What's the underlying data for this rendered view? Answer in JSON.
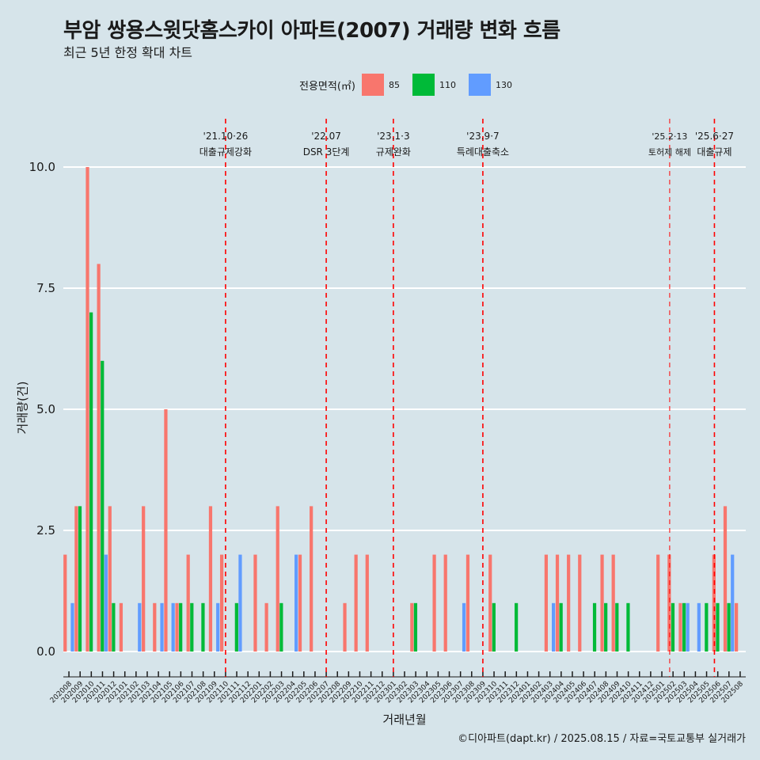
{
  "title": "부암 쌍용스윗닷홈스카이 아파트(2007) 거래량 변화 흐름",
  "subtitle": "최근 5년 한정 확대 차트",
  "caption": "©디아파트(dapt.kr) / 2025.08.15 / 자료=국토교통부 실거래가",
  "legend": {
    "title": "전용면적(㎡)",
    "items": [
      {
        "label": "85",
        "color": "#f8766d"
      },
      {
        "label": "110",
        "color": "#00ba38"
      },
      {
        "label": "130",
        "color": "#619cff"
      }
    ]
  },
  "chart_data": {
    "type": "bar",
    "xlabel": "거래년월",
    "ylabel": "거래량(건)",
    "ylim": [
      0,
      10
    ],
    "yticks": [
      "0.0",
      "2.5",
      "5.0",
      "7.5",
      "10.0"
    ],
    "categories": [
      "202008",
      "202009",
      "202010",
      "202011",
      "202012",
      "202101",
      "202102",
      "202103",
      "202104",
      "202105",
      "202106",
      "202107",
      "202108",
      "202109",
      "202110",
      "202111",
      "202112",
      "202201",
      "202202",
      "202203",
      "202204",
      "202205",
      "202206",
      "202207",
      "202208",
      "202209",
      "202210",
      "202211",
      "202212",
      "202301",
      "202302",
      "202303",
      "202304",
      "202305",
      "202306",
      "202307",
      "202308",
      "202309",
      "202310",
      "202311",
      "202312",
      "202401",
      "202402",
      "202403",
      "202404",
      "202405",
      "202406",
      "202407",
      "202408",
      "202409",
      "202410",
      "202411",
      "202412",
      "202501",
      "202502",
      "202503",
      "202504",
      "202505",
      "202506",
      "202507",
      "202508"
    ],
    "series": [
      {
        "name": "85",
        "color": "#f8766d",
        "values": [
          2,
          3,
          10,
          8,
          3,
          1,
          0,
          3,
          1,
          5,
          1,
          2,
          0,
          3,
          2,
          0,
          0,
          2,
          1,
          3,
          0,
          2,
          3,
          0,
          0,
          1,
          2,
          2,
          0,
          0,
          0,
          1,
          0,
          2,
          2,
          0,
          2,
          0,
          2,
          0,
          0,
          0,
          0,
          2,
          2,
          2,
          2,
          0,
          2,
          2,
          0,
          0,
          0,
          2,
          2,
          1,
          0,
          0,
          2,
          3,
          1
        ]
      },
      {
        "name": "110",
        "color": "#00ba38",
        "values": [
          0,
          3,
          7,
          6,
          1,
          0,
          0,
          0,
          0,
          0,
          1,
          1,
          1,
          0,
          0,
          1,
          0,
          0,
          0,
          1,
          0,
          0,
          0,
          0,
          0,
          0,
          0,
          0,
          0,
          0,
          0,
          1,
          0,
          0,
          0,
          0,
          0,
          0,
          1,
          0,
          1,
          0,
          0,
          0,
          1,
          0,
          0,
          1,
          1,
          1,
          1,
          0,
          0,
          0,
          1,
          1,
          0,
          1,
          1,
          1,
          0
        ]
      },
      {
        "name": "130",
        "color": "#619cff",
        "values": [
          1,
          0,
          0,
          2,
          0,
          0,
          1,
          0,
          1,
          1,
          0,
          0,
          0,
          1,
          0,
          2,
          0,
          0,
          0,
          0,
          2,
          0,
          0,
          0,
          0,
          0,
          0,
          0,
          0,
          0,
          0,
          0,
          0,
          0,
          0,
          1,
          0,
          0,
          0,
          0,
          0,
          0,
          0,
          1,
          0,
          0,
          0,
          0,
          0,
          0,
          0,
          0,
          0,
          0,
          0,
          1,
          1,
          0,
          0,
          2,
          0
        ]
      }
    ],
    "events": [
      {
        "date_line1": "'21.10·26",
        "date_line2": "대출규제강화",
        "index": 14.5
      },
      {
        "date_line1": "'22.07",
        "date_line2": "DSR 3단계",
        "index": 23.5
      },
      {
        "date_line1": "'23.1·3",
        "date_line2": "규제완화",
        "index": 29.5
      },
      {
        "date_line1": "'23.9·7",
        "date_line2": "특례대출축소",
        "index": 37.5
      },
      {
        "date_line1": "'25.2·13",
        "date_line2": "토허제 해제",
        "index": 54.2
      },
      {
        "date_line1": "'25.6·27",
        "date_line2": "대출규제",
        "index": 58.2
      }
    ]
  }
}
